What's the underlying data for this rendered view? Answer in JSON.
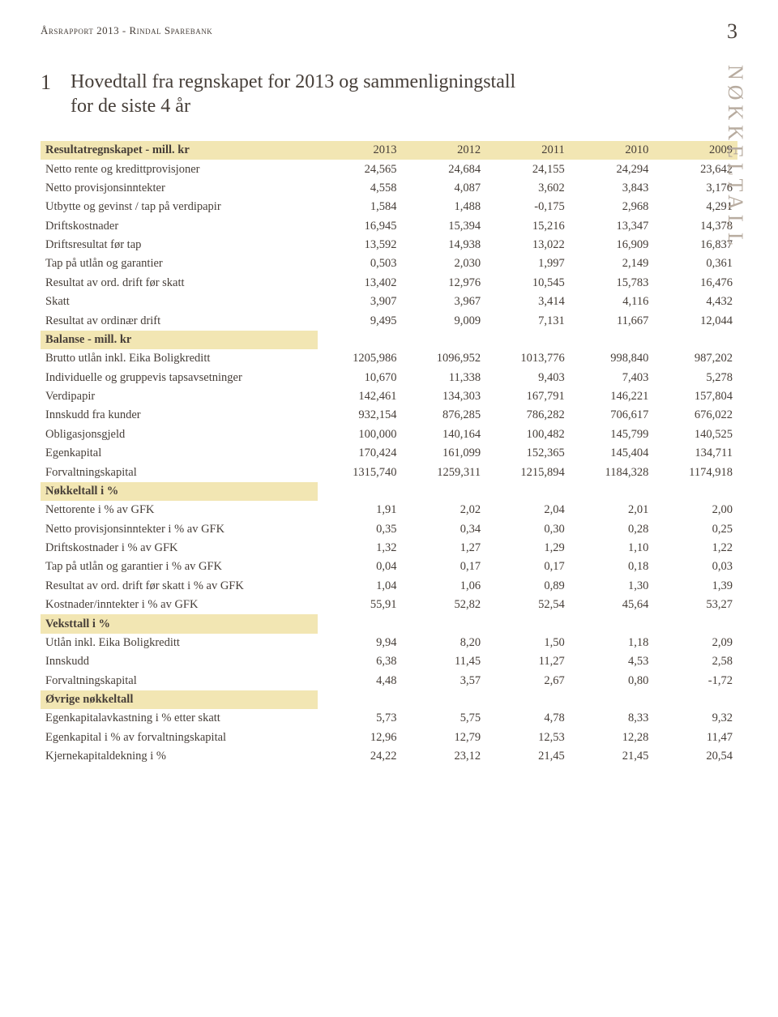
{
  "header": "Årsrapport 2013 - Rindal Sparebank",
  "page_number": "3",
  "side_label": "NØKKELTALL",
  "title_number": "1",
  "title_line1": "Hovedtall fra regnskapet for 2013  og sammenligningstall",
  "title_line2": "for de siste 4 år",
  "years": [
    "2013",
    "2012",
    "2011",
    "2010",
    "2009"
  ],
  "sections": [
    {
      "label": "Resultatregnskapet - mill. kr",
      "rows": [
        {
          "label": "Netto rente og kredittprovisjoner",
          "v": [
            "24,565",
            "24,684",
            "24,155",
            "24,294",
            "23,642"
          ]
        },
        {
          "label": "Netto provisjonsinntekter",
          "v": [
            "4,558",
            "4,087",
            "3,602",
            "3,843",
            "3,176"
          ]
        },
        {
          "label": "Utbytte og gevinst / tap på verdipapir",
          "v": [
            "1,584",
            "1,488",
            "-0,175",
            "2,968",
            "4,291"
          ]
        },
        {
          "label": "Driftskostnader",
          "v": [
            "16,945",
            "15,394",
            "15,216",
            "13,347",
            "14,378"
          ]
        },
        {
          "label": "Driftsresultat før tap",
          "v": [
            "13,592",
            "14,938",
            "13,022",
            "16,909",
            "16,837"
          ]
        },
        {
          "label": "Tap på utlån og garantier",
          "v": [
            "0,503",
            "2,030",
            "1,997",
            "2,149",
            "0,361"
          ]
        },
        {
          "label": "Resultat av ord. drift før skatt",
          "v": [
            "13,402",
            "12,976",
            "10,545",
            "15,783",
            "16,476"
          ]
        },
        {
          "label": "Skatt",
          "v": [
            "3,907",
            "3,967",
            "3,414",
            "4,116",
            "4,432"
          ]
        },
        {
          "label": "Resultat av ordinær drift",
          "v": [
            "9,495",
            "9,009",
            "7,131",
            "11,667",
            "12,044"
          ]
        }
      ]
    },
    {
      "label": "Balanse - mill. kr",
      "short": true,
      "rows": [
        {
          "label": "Brutto utlån inkl. Eika Boligkreditt",
          "v": [
            "1205,986",
            "1096,952",
            "1013,776",
            "998,840",
            "987,202"
          ]
        },
        {
          "label": "Individuelle og gruppevis tapsavsetninger",
          "v": [
            "10,670",
            "11,338",
            "9,403",
            "7,403",
            "5,278"
          ]
        },
        {
          "label": "Verdipapir",
          "v": [
            "142,461",
            "134,303",
            "167,791",
            "146,221",
            "157,804"
          ]
        },
        {
          "label": "Innskudd fra kunder",
          "v": [
            "932,154",
            "876,285",
            "786,282",
            "706,617",
            "676,022"
          ]
        },
        {
          "label": "Obligasjonsgjeld",
          "v": [
            "100,000",
            "140,164",
            "100,482",
            "145,799",
            "140,525"
          ]
        },
        {
          "label": "Egenkapital",
          "v": [
            "170,424",
            "161,099",
            "152,365",
            "145,404",
            "134,711"
          ]
        },
        {
          "label": "Forvaltningskapital",
          "v": [
            "1315,740",
            "1259,311",
            "1215,894",
            "1184,328",
            "1174,918"
          ]
        }
      ]
    },
    {
      "label": "Nøkkeltall i %",
      "short": true,
      "rows": [
        {
          "label": "Nettorente i % av GFK",
          "v": [
            "1,91",
            "2,02",
            "2,04",
            "2,01",
            "2,00"
          ]
        },
        {
          "label": "Netto provisjonsinntekter i % av GFK",
          "v": [
            "0,35",
            "0,34",
            "0,30",
            "0,28",
            "0,25"
          ]
        },
        {
          "label": "Driftskostnader i % av GFK",
          "v": [
            "1,32",
            "1,27",
            "1,29",
            "1,10",
            "1,22"
          ]
        },
        {
          "label": "Tap på utlån og garantier i % av GFK",
          "v": [
            "0,04",
            "0,17",
            "0,17",
            "0,18",
            "0,03"
          ]
        },
        {
          "label": "Resultat av ord. drift før skatt i % av GFK",
          "v": [
            "1,04",
            "1,06",
            "0,89",
            "1,30",
            "1,39"
          ]
        },
        {
          "label": "Kostnader/inntekter i % av GFK",
          "v": [
            "55,91",
            "52,82",
            "52,54",
            "45,64",
            "53,27"
          ]
        }
      ]
    },
    {
      "label": "Veksttall i %",
      "short": true,
      "rows": [
        {
          "label": "Utlån inkl. Eika Boligkreditt",
          "v": [
            "9,94",
            "8,20",
            "1,50",
            "1,18",
            "2,09"
          ]
        },
        {
          "label": "Innskudd",
          "v": [
            "6,38",
            "11,45",
            "11,27",
            "4,53",
            "2,58"
          ]
        },
        {
          "label": "Forvaltningskapital",
          "v": [
            "4,48",
            "3,57",
            "2,67",
            "0,80",
            "-1,72"
          ]
        }
      ]
    },
    {
      "label": "Øvrige nøkkeltall",
      "short": true,
      "rows": [
        {
          "label": "Egenkapitalavkastning i % etter skatt",
          "v": [
            "5,73",
            "5,75",
            "4,78",
            "8,33",
            "9,32"
          ]
        },
        {
          "label": "Egenkapital i % av forvaltningskapital",
          "v": [
            "12,96",
            "12,79",
            "12,53",
            "12,28",
            "11,47"
          ]
        },
        {
          "label": "Kjernekapitaldekning i %",
          "v": [
            "24,22",
            "23,12",
            "21,45",
            "21,45",
            "20,54"
          ]
        }
      ]
    }
  ],
  "colors": {
    "text": "#463e38",
    "highlight": "#f2e6b3",
    "side_label": "#b8aca0",
    "background": "#ffffff"
  }
}
